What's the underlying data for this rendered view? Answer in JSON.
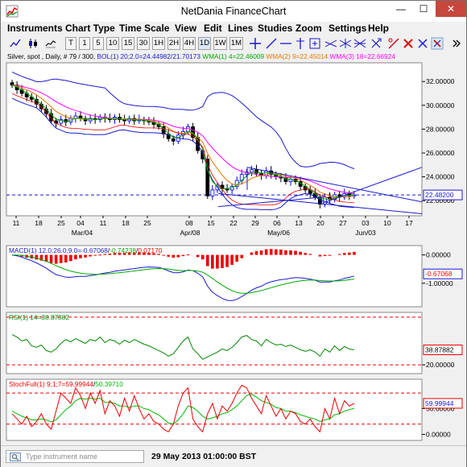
{
  "window": {
    "title": "NetDania FinanceChart",
    "minimize_glyph": "—",
    "maximize_glyph": "☐",
    "close_glyph": "✕"
  },
  "menu": [
    "Instruments",
    "Chart Type",
    "Time Scale",
    "View",
    "Edit",
    "Lines",
    "Studies",
    "Zoom",
    "Settings",
    "Help"
  ],
  "toolbar": {
    "period_buttons": [
      "T",
      "1",
      "5",
      "10",
      "15",
      "30",
      "1H",
      "2H",
      "4H",
      "1D",
      "1W",
      "1M"
    ],
    "tool_icons": [
      "line-chart-icon",
      "candlestick-icon",
      "bar-chart-icon",
      "crosshair-icon",
      "trend-line-icon",
      "horizontal-line-icon",
      "vertical-line-icon",
      "zoom-icon",
      "channel-icon",
      "fibonacci-icon",
      "text-tool-icon",
      "delete-icon",
      "hide-icon",
      "expand-icon"
    ]
  },
  "instrument_legend": {
    "symbol": "Silver, spot , Daily, # 79 / 300,",
    "bol": "BOL(1) 20;2.0=24.44982/21.70173",
    "wma1": "WMA(1) 4=22.46009",
    "wma2": "WMA(2) 9=22.45014",
    "wma3": "WMA(3) 18=22.66924"
  },
  "colors": {
    "up_candle": "#0000ee",
    "down_candle": "#000000",
    "bollinger": "#1a1acd",
    "wma1": "#00aa00",
    "wma2": "#e87800",
    "wma3": "#ff00ff",
    "macd_line": "#1a1acd",
    "macd_signal": "#00aa00",
    "macd_hist": "#ee0000",
    "rsi": "#008800",
    "stoch_k": "#ee0000",
    "stoch_d": "#00bb00",
    "current_price": "#1a1acd",
    "accent_red": "#c7463d"
  },
  "price_panel": {
    "y_labels": [
      "32.00000",
      "30.00000",
      "28.00000",
      "26.00000",
      "24.00000",
      "22.00000"
    ],
    "current_price_label": "22.48200",
    "x_tick_labels": [
      "11",
      "18",
      "25",
      "04",
      "11",
      "18",
      "25",
      "08",
      "15",
      "22",
      "29",
      "06",
      "13",
      "20",
      "27",
      "03",
      "10",
      "17"
    ],
    "x_month_labels": [
      "Mar/04",
      "Apr/08",
      "May/06",
      "Jun/03"
    ]
  },
  "macd_panel": {
    "title_prefix": "MACD(1) 12.0;26.0;9.0=",
    "macd_value": "-0.67068",
    "signal_value": "-0.74238",
    "hist_value": "0.07170",
    "y_labels": [
      "0.00000",
      "-1.00000"
    ],
    "current_label": "-0.67068"
  },
  "rsi_panel": {
    "title": "RSI(1) 14=38.87882",
    "y_labels": [
      "20.00000"
    ],
    "current_label": "38.87882"
  },
  "stoch_panel": {
    "title_prefix": "StochFull(1) 9;1;7=",
    "k_value": "59.99944",
    "d_value": "50.39710",
    "y_labels": [
      "50.00000",
      "0.00000"
    ],
    "current_label": "59.99944"
  },
  "status": {
    "search_placeholder": "Type instrument name",
    "datetime": "29 May 2013 01:00:00 BST"
  },
  "chart_data": {
    "type": "candlestick",
    "instrument": "Silver, spot",
    "timeframe": "Daily",
    "y_range": [
      20.8,
      33.5
    ],
    "indicators": {
      "bollinger": {
        "period": 20,
        "stddev": 2.0,
        "upper": 24.44982,
        "lower": 21.70173
      },
      "wma": [
        {
          "period": 4,
          "value": 22.46009
        },
        {
          "period": 9,
          "value": 22.45014
        },
        {
          "period": 18,
          "value": 22.66924
        }
      ],
      "macd": {
        "fast": 12.0,
        "slow": 26.0,
        "signal": 9.0,
        "macd": -0.67068,
        "signal_value": -0.74238,
        "histogram": 0.0717
      },
      "rsi": {
        "period": 14,
        "value": 38.87882
      },
      "stoch_full": {
        "k": 9,
        "slow": 1,
        "d": 7,
        "k_value": 59.99944,
        "d_value": 50.3971
      }
    },
    "closes": [
      31.7,
      31.3,
      31.0,
      30.7,
      30.5,
      30.1,
      29.7,
      29.3,
      28.7,
      28.5,
      28.8,
      28.6,
      28.9,
      29.1,
      28.9,
      28.7,
      28.9,
      28.8,
      29.0,
      28.9,
      28.8,
      29.0,
      28.8,
      28.7,
      28.9,
      28.7,
      28.8,
      28.7,
      28.6,
      28.4,
      28.2,
      27.6,
      27.2,
      27.0,
      27.5,
      27.8,
      28.2,
      27.3,
      26.2,
      25.5,
      22.4,
      22.9,
      23.3,
      23.0,
      22.9,
      23.2,
      23.7,
      24.2,
      24.4,
      24.6,
      24.3,
      24.1,
      24.5,
      24.2,
      24.0,
      23.9,
      23.6,
      23.8,
      23.6,
      23.2,
      22.9,
      22.6,
      22.3,
      21.7,
      22.3,
      22.1,
      22.5,
      22.3,
      22.6,
      22.4,
      22.48
    ],
    "rsi_values": [
      58,
      55,
      50,
      52,
      44,
      42,
      45,
      38,
      36,
      40,
      47,
      52,
      49,
      53,
      50,
      47,
      52,
      50,
      55,
      48,
      52,
      50,
      46,
      51,
      48,
      52,
      49,
      46,
      44,
      41,
      38,
      35,
      31,
      34,
      42,
      50,
      55,
      40,
      34,
      27,
      30,
      33,
      36,
      40,
      38,
      42,
      48,
      55,
      57,
      52,
      50,
      44,
      52,
      48,
      45,
      46,
      43,
      45,
      42,
      39,
      37,
      39,
      36,
      31,
      40,
      36,
      44,
      38,
      43,
      40,
      38.88
    ],
    "stoch_k": [
      40,
      30,
      20,
      35,
      15,
      25,
      40,
      20,
      10,
      45,
      80,
      70,
      60,
      90,
      75,
      50,
      80,
      60,
      85,
      40,
      65,
      55,
      35,
      70,
      45,
      75,
      50,
      30,
      40,
      25,
      20,
      10,
      5,
      20,
      55,
      80,
      90,
      30,
      15,
      5,
      40,
      60,
      30,
      55,
      45,
      60,
      80,
      95,
      90,
      70,
      55,
      40,
      75,
      55,
      35,
      50,
      30,
      45,
      40,
      25,
      20,
      30,
      15,
      5,
      50,
      30,
      70,
      40,
      65,
      55,
      59.99944
    ],
    "stoch_d": [
      45,
      40,
      35,
      32,
      28,
      28,
      30,
      28,
      24,
      28,
      38,
      48,
      55,
      65,
      70,
      68,
      70,
      68,
      70,
      62,
      62,
      60,
      55,
      55,
      52,
      55,
      55,
      50,
      48,
      42,
      38,
      30,
      22,
      20,
      28,
      40,
      55,
      52,
      45,
      35,
      30,
      32,
      35,
      40,
      42,
      48,
      55,
      65,
      75,
      78,
      72,
      65,
      62,
      58,
      52,
      50,
      45,
      45,
      42,
      38,
      35,
      32,
      30,
      25,
      28,
      30,
      38,
      40,
      45,
      48,
      50.3971
    ]
  }
}
